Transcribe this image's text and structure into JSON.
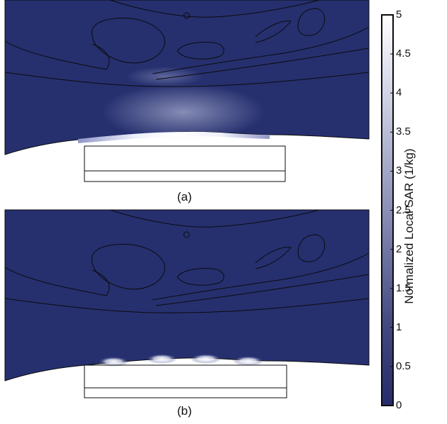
{
  "panels": [
    {
      "label": "(a)"
    },
    {
      "label": "(b)"
    }
  ],
  "colorbar": {
    "title": "Normalized Local SAR (1/kg)",
    "ticks": [
      "0",
      "0.5",
      "1",
      "1.5",
      "2",
      "2.5",
      "3",
      "3.5",
      "4",
      "4.5",
      "5"
    ],
    "range": [
      0,
      5
    ],
    "colormap": [
      "#262b6b",
      "#ffffff"
    ]
  },
  "colors": {
    "tissue": "#26306f",
    "outline": "#0b0b0b"
  }
}
